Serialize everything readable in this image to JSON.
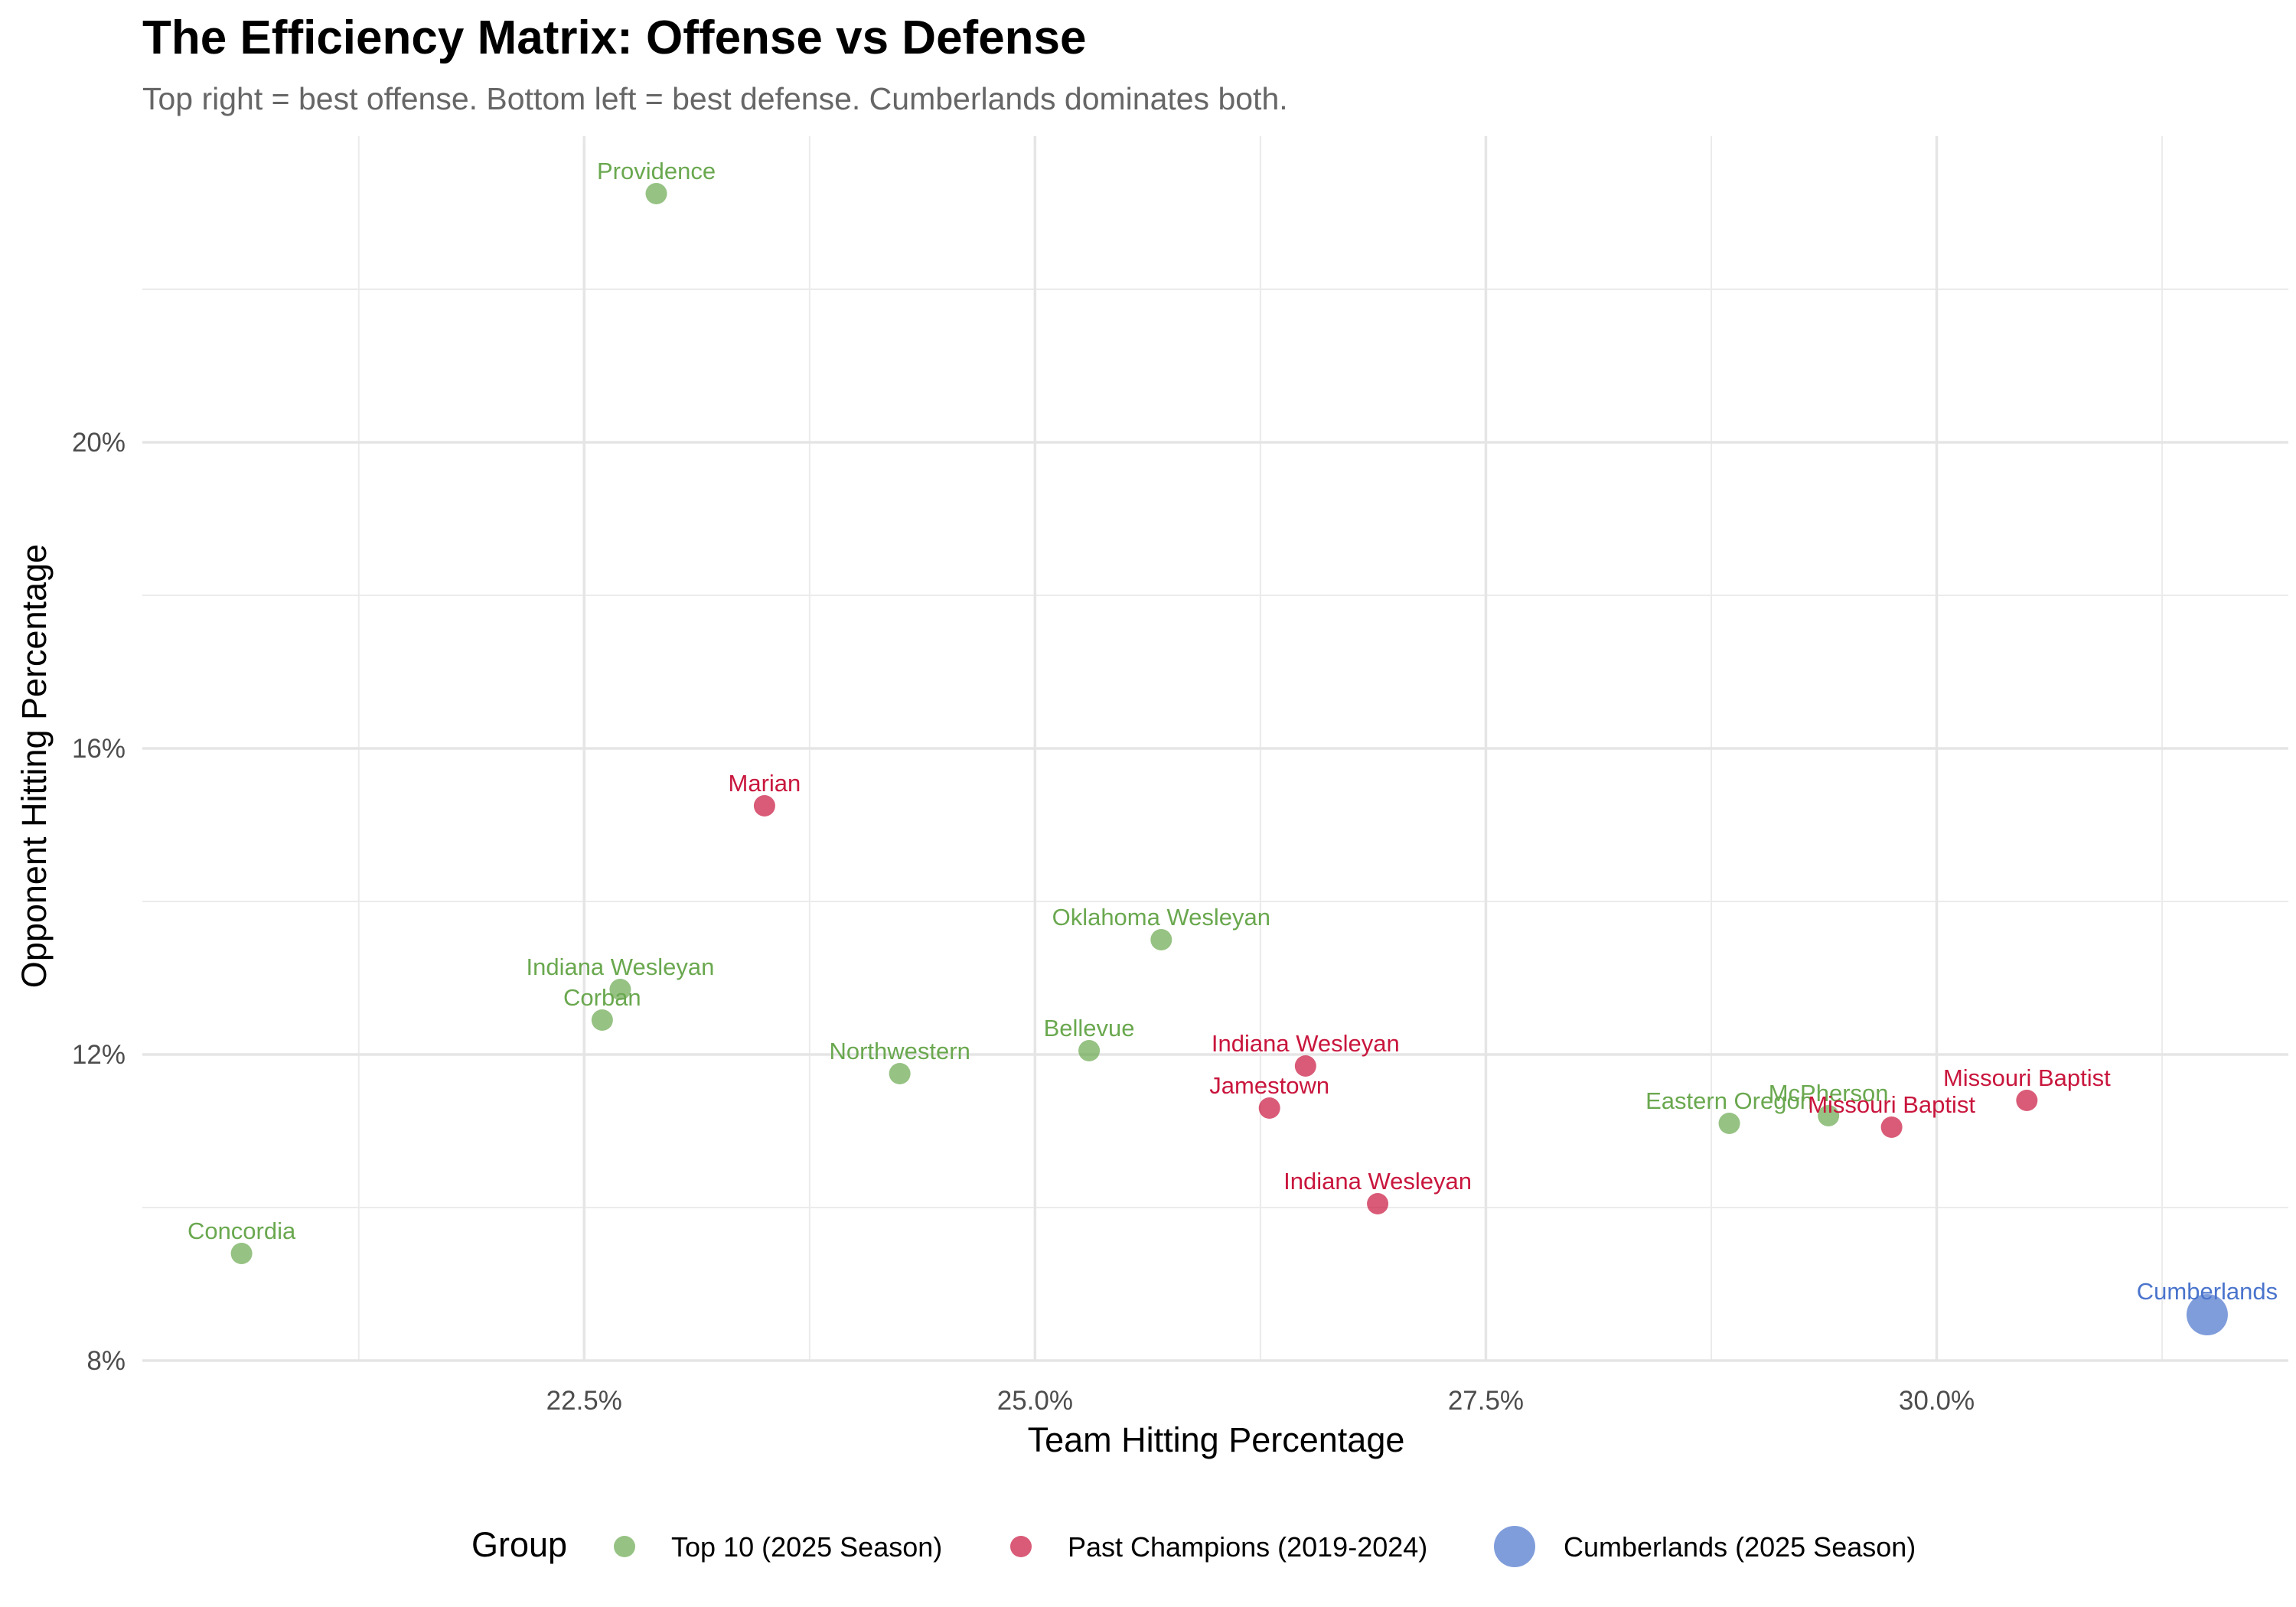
{
  "chart_data": {
    "type": "scatter",
    "title": "The Efficiency Matrix: Offense vs Defense",
    "subtitle": "Top right = best offense. Bottom left = best defense. Cumberlands dominates both.",
    "xlabel": "Team Hitting Percentage",
    "ylabel": "Opponent Hitting Percentage",
    "xlim": [
      20.05,
      31.95
    ],
    "ylim": [
      8.0,
      24.0
    ],
    "x_ticks": [
      22.5,
      25.0,
      27.5,
      30.0
    ],
    "x_tick_labels": [
      "22.5%",
      "25.0%",
      "27.5%",
      "30.0%"
    ],
    "y_ticks": [
      8,
      12,
      16,
      20
    ],
    "y_tick_labels": [
      "8%",
      "12%",
      "16%",
      "20%"
    ],
    "grid": true,
    "legend": {
      "title": "Group",
      "position": "bottom",
      "entries": [
        {
          "label": "Top 10 (2025 Season)",
          "color": "#6aa84f",
          "size": "small"
        },
        {
          "label": "Past Champions (2019-2024)",
          "color": "#c9163d",
          "size": "small"
        },
        {
          "label": "Cumberlands (2025 Season)",
          "color": "#4a74cc",
          "size": "large"
        }
      ]
    },
    "series": [
      {
        "name": "Top 10 (2025 Season)",
        "color": "#6aa84f",
        "points": [
          {
            "label": "Providence",
            "x": 22.9,
            "y": 23.25
          },
          {
            "label": "Concordia",
            "x": 20.6,
            "y": 9.4
          },
          {
            "label": "Indiana Wesleyan",
            "x": 22.7,
            "y": 12.85
          },
          {
            "label": "Corban",
            "x": 22.6,
            "y": 12.45
          },
          {
            "label": "Northwestern",
            "x": 24.25,
            "y": 11.75
          },
          {
            "label": "Bellevue",
            "x": 25.3,
            "y": 12.05
          },
          {
            "label": "Oklahoma Wesleyan",
            "x": 25.7,
            "y": 13.5
          },
          {
            "label": "Eastern Oregon",
            "x": 28.85,
            "y": 11.1
          },
          {
            "label": "McPherson",
            "x": 29.4,
            "y": 11.2
          }
        ]
      },
      {
        "name": "Past Champions (2019-2024)",
        "color": "#c9163d",
        "points": [
          {
            "label": "Marian",
            "x": 23.5,
            "y": 15.25
          },
          {
            "label": "Indiana Wesleyan",
            "x": 26.5,
            "y": 11.85
          },
          {
            "label": "Jamestown",
            "x": 26.3,
            "y": 11.3
          },
          {
            "label": "Indiana Wesleyan",
            "x": 26.9,
            "y": 10.05
          },
          {
            "label": "Missouri Baptist",
            "x": 29.75,
            "y": 11.05
          },
          {
            "label": "Missouri Baptist",
            "x": 30.5,
            "y": 11.4
          }
        ]
      },
      {
        "name": "Cumberlands (2025 Season)",
        "color": "#4a74cc",
        "points": [
          {
            "label": "Cumberlands",
            "x": 31.5,
            "y": 8.6
          }
        ]
      }
    ]
  }
}
